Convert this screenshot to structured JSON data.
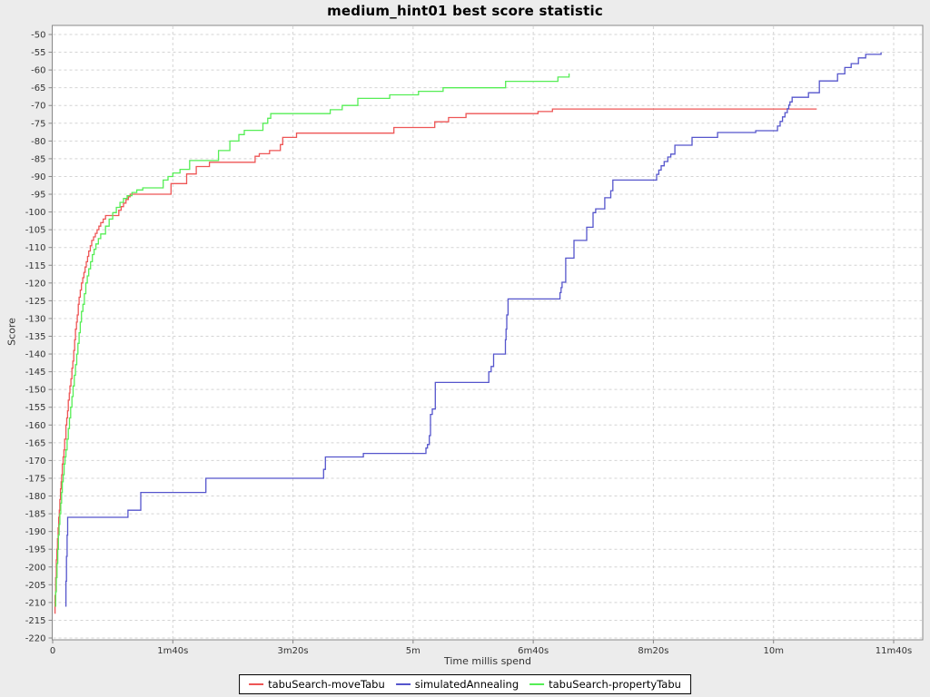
{
  "title": "medium_hint01 best score statistic",
  "chart_data": {
    "type": "line",
    "subtype": "step-after",
    "title": "medium_hint01 best score statistic",
    "xlabel": "Time millis spend",
    "ylabel": "Score",
    "xlim": [
      0,
      700
    ],
    "ylim": [
      -220,
      -50
    ],
    "y_tick_step": 5,
    "grid": true,
    "grid_style": "dashed",
    "legend_position": "bottom",
    "x_ticks": [
      {
        "t": 0,
        "label": "0"
      },
      {
        "t": 100,
        "label": "1m40s"
      },
      {
        "t": 200,
        "label": "3m20s"
      },
      {
        "t": 300,
        "label": "5m"
      },
      {
        "t": 400,
        "label": "6m40s"
      },
      {
        "t": 500,
        "label": "8m20s"
      },
      {
        "t": 600,
        "label": "10m"
      },
      {
        "t": 700,
        "label": "11m40s"
      }
    ],
    "series": [
      {
        "name": "tabuSearch-moveTabu",
        "color": "#ee5555",
        "points": [
          [
            1.5,
            -213
          ],
          [
            2,
            -208
          ],
          [
            2.5,
            -203
          ],
          [
            3,
            -198
          ],
          [
            3.5,
            -195
          ],
          [
            4,
            -192
          ],
          [
            4.5,
            -189
          ],
          [
            5,
            -186
          ],
          [
            5.5,
            -184
          ],
          [
            6,
            -181
          ],
          [
            6.5,
            -178
          ],
          [
            7,
            -176
          ],
          [
            7.5,
            -174
          ],
          [
            8,
            -171
          ],
          [
            8.7,
            -169
          ],
          [
            9.4,
            -167
          ],
          [
            10,
            -164
          ],
          [
            11,
            -160
          ],
          [
            11.7,
            -158
          ],
          [
            12.4,
            -156
          ],
          [
            13,
            -153
          ],
          [
            13.8,
            -151
          ],
          [
            14.4,
            -149
          ],
          [
            15.2,
            -147
          ],
          [
            16,
            -144
          ],
          [
            16.8,
            -142
          ],
          [
            17.5,
            -139
          ],
          [
            18.3,
            -136
          ],
          [
            19,
            -133
          ],
          [
            19.8,
            -131
          ],
          [
            20.5,
            -129
          ],
          [
            21.3,
            -126
          ],
          [
            22,
            -124
          ],
          [
            23,
            -122
          ],
          [
            24,
            -120
          ],
          [
            25,
            -118.5
          ],
          [
            26,
            -117
          ],
          [
            27,
            -115.5
          ],
          [
            28,
            -114
          ],
          [
            29,
            -112.5
          ],
          [
            30,
            -111
          ],
          [
            31.3,
            -109.5
          ],
          [
            32.5,
            -108
          ],
          [
            34,
            -107
          ],
          [
            35.5,
            -106
          ],
          [
            37,
            -105
          ],
          [
            38.5,
            -104
          ],
          [
            40,
            -103
          ],
          [
            42,
            -102
          ],
          [
            44,
            -101
          ],
          [
            55,
            -99.5
          ],
          [
            57,
            -98.5
          ],
          [
            59,
            -97.5
          ],
          [
            61,
            -96.5
          ],
          [
            63,
            -95.7
          ],
          [
            64.5,
            -95
          ],
          [
            98.5,
            -92
          ],
          [
            111.5,
            -89.3
          ],
          [
            119.5,
            -87.2
          ],
          [
            130.5,
            -86
          ],
          [
            168.5,
            -84.3
          ],
          [
            172,
            -83.6
          ],
          [
            180.5,
            -82.7
          ],
          [
            189.5,
            -81
          ],
          [
            191.5,
            -79
          ],
          [
            203,
            -77.8
          ],
          [
            284,
            -76.2
          ],
          [
            318,
            -74.6
          ],
          [
            329.5,
            -73.4
          ],
          [
            344,
            -72.3
          ],
          [
            404,
            -71.7
          ],
          [
            416,
            -71
          ],
          [
            636,
            -71
          ]
        ]
      },
      {
        "name": "simulatedAnnealing",
        "color": "#5555cc",
        "points": [
          [
            10.5,
            -211
          ],
          [
            11,
            -204
          ],
          [
            11.5,
            -197
          ],
          [
            12,
            -191
          ],
          [
            12.5,
            -186
          ],
          [
            62.7,
            -184
          ],
          [
            73.3,
            -179
          ],
          [
            127.5,
            -175
          ],
          [
            225.5,
            -172.5
          ],
          [
            227,
            -169
          ],
          [
            258.6,
            -168
          ],
          [
            310.7,
            -166.5
          ],
          [
            312,
            -165.5
          ],
          [
            313.5,
            -163
          ],
          [
            314.5,
            -157
          ],
          [
            316,
            -155.5
          ],
          [
            318.5,
            -148
          ],
          [
            363,
            -145
          ],
          [
            365,
            -143.5
          ],
          [
            367,
            -140
          ],
          [
            376.8,
            -136
          ],
          [
            377.4,
            -133
          ],
          [
            378,
            -129
          ],
          [
            379,
            -124.5
          ],
          [
            422.3,
            -122.7
          ],
          [
            423.2,
            -121.3
          ],
          [
            424,
            -119.8
          ],
          [
            427,
            -113
          ],
          [
            433.9,
            -108
          ],
          [
            444.5,
            -104.3
          ],
          [
            449.8,
            -100.2
          ],
          [
            452,
            -99.1
          ],
          [
            459.5,
            -96
          ],
          [
            464.5,
            -94
          ],
          [
            466.3,
            -91
          ],
          [
            502.7,
            -89.4
          ],
          [
            504.5,
            -88.2
          ],
          [
            506.5,
            -87
          ],
          [
            509,
            -85.8
          ],
          [
            512,
            -84.5
          ],
          [
            514.5,
            -83.7
          ],
          [
            517.9,
            -81.2
          ],
          [
            532.2,
            -79
          ],
          [
            553.4,
            -77.6
          ],
          [
            585.2,
            -77.1
          ],
          [
            603.3,
            -75.8
          ],
          [
            605.5,
            -74.5
          ],
          [
            607.5,
            -73.2
          ],
          [
            609.5,
            -72
          ],
          [
            611.5,
            -70.9
          ],
          [
            612.7,
            -69.9
          ],
          [
            613.7,
            -69
          ],
          [
            615.5,
            -67.7
          ],
          [
            629.1,
            -66.4
          ],
          [
            638.2,
            -63.1
          ],
          [
            653.3,
            -61.1
          ],
          [
            659.3,
            -59.3
          ],
          [
            664.6,
            -58.2
          ],
          [
            670.7,
            -56.6
          ],
          [
            676.7,
            -55.6
          ],
          [
            689.5,
            -55
          ]
        ]
      },
      {
        "name": "tabuSearch-propertyTabu",
        "color": "#55ee55",
        "points": [
          [
            2,
            -211
          ],
          [
            2.5,
            -207
          ],
          [
            3,
            -203
          ],
          [
            3.6,
            -199
          ],
          [
            4.2,
            -195
          ],
          [
            4.8,
            -191
          ],
          [
            5.4,
            -188
          ],
          [
            6,
            -185
          ],
          [
            6.7,
            -182
          ],
          [
            7.4,
            -179
          ],
          [
            8,
            -176
          ],
          [
            8.8,
            -174
          ],
          [
            9.5,
            -171
          ],
          [
            10.3,
            -169
          ],
          [
            11,
            -167
          ],
          [
            12,
            -164
          ],
          [
            13,
            -161
          ],
          [
            14,
            -158
          ],
          [
            15,
            -155
          ],
          [
            16,
            -152
          ],
          [
            17,
            -149
          ],
          [
            18,
            -146
          ],
          [
            19,
            -143
          ],
          [
            20,
            -140
          ],
          [
            21,
            -137
          ],
          [
            22,
            -134
          ],
          [
            23,
            -131
          ],
          [
            24,
            -128
          ],
          [
            25.2,
            -126
          ],
          [
            26.4,
            -123
          ],
          [
            27.6,
            -120
          ],
          [
            28.8,
            -118
          ],
          [
            30,
            -116
          ],
          [
            31.5,
            -114
          ],
          [
            33,
            -112
          ],
          [
            34.5,
            -110.5
          ],
          [
            36,
            -109
          ],
          [
            38,
            -107.5
          ],
          [
            40,
            -106.2
          ],
          [
            44,
            -104
          ],
          [
            47,
            -102
          ],
          [
            50,
            -100.2
          ],
          [
            53,
            -98.7
          ],
          [
            56,
            -97.3
          ],
          [
            59,
            -96.2
          ],
          [
            62,
            -95.4
          ],
          [
            66,
            -94.5
          ],
          [
            70,
            -93.8
          ],
          [
            75,
            -93.2
          ],
          [
            92,
            -91
          ],
          [
            96,
            -90
          ],
          [
            100,
            -89
          ],
          [
            106,
            -88
          ],
          [
            114,
            -85.5
          ],
          [
            138,
            -82.7
          ],
          [
            147.5,
            -80
          ],
          [
            155,
            -78.2
          ],
          [
            159.5,
            -77
          ],
          [
            175,
            -75
          ],
          [
            179,
            -73.6
          ],
          [
            181.5,
            -72.3
          ],
          [
            231,
            -71.2
          ],
          [
            241,
            -70
          ],
          [
            254,
            -68
          ],
          [
            280.5,
            -67
          ],
          [
            304.5,
            -66
          ],
          [
            325,
            -65
          ],
          [
            377,
            -63.2
          ],
          [
            420.5,
            -62
          ],
          [
            429.8,
            -61
          ]
        ]
      }
    ],
    "colors": {
      "outer_background": "#ececec",
      "plot_background": "#ffffff",
      "gridline": "#d4d4d4",
      "plot_border": "#888888",
      "tick_text": "#333333",
      "title_text": "#000000"
    }
  }
}
